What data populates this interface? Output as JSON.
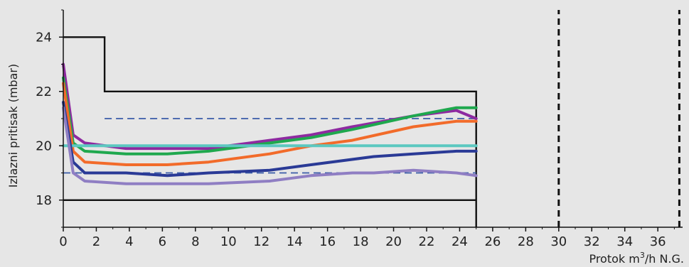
{
  "chart_data": {
    "type": "line",
    "title": "",
    "xlabel": "Protok m",
    "xlabel_sup": "3",
    "xlabel_suffix": "/h N.G.",
    "ylabel": "Izlazni pritisak (mbar)",
    "xlim": [
      0,
      37.5
    ],
    "ylim": [
      17,
      25
    ],
    "x_ticks": [
      0,
      2,
      4,
      6,
      8,
      10,
      12,
      14,
      16,
      18,
      20,
      22,
      24,
      26,
      28,
      30,
      32,
      34,
      36
    ],
    "y_ticks": [
      18,
      20,
      22,
      24
    ],
    "grid": false,
    "boundaries": [
      {
        "role": "limit",
        "style": "solid",
        "color": "#111111",
        "points": [
          [
            0,
            24
          ],
          [
            2.5,
            24
          ],
          [
            2.5,
            22
          ],
          [
            25,
            22
          ],
          [
            25,
            17
          ]
        ]
      },
      {
        "role": "limit",
        "style": "solid",
        "color": "#111111",
        "points": [
          [
            0,
            18
          ],
          [
            25,
            18
          ]
        ]
      },
      {
        "role": "marker",
        "style": "dashed",
        "color": "#111111",
        "points": [
          [
            30,
            17
          ],
          [
            30,
            25
          ]
        ]
      },
      {
        "role": "marker",
        "style": "dashed",
        "color": "#111111",
        "points": [
          [
            37.3,
            17
          ],
          [
            37.3,
            25
          ]
        ]
      },
      {
        "role": "reference",
        "style": "dashed",
        "color": "#3a5ba8",
        "points": [
          [
            2.5,
            21
          ],
          [
            25,
            21
          ]
        ]
      },
      {
        "role": "reference",
        "style": "dashed",
        "color": "#3a5ba8",
        "points": [
          [
            0,
            19
          ],
          [
            25,
            19
          ]
        ]
      }
    ],
    "series": [
      {
        "color": "#8e2aa0",
        "points": [
          [
            0,
            23
          ],
          [
            0.6,
            20.4
          ],
          [
            1.3,
            20.1
          ],
          [
            3.8,
            19.9
          ],
          [
            6.3,
            19.9
          ],
          [
            8.8,
            19.9
          ],
          [
            12.5,
            20.2
          ],
          [
            15,
            20.4
          ],
          [
            17.5,
            20.7
          ],
          [
            21.2,
            21.1
          ],
          [
            23.8,
            21.3
          ],
          [
            25,
            21
          ]
        ]
      },
      {
        "color": "#1fa84e",
        "points": [
          [
            0,
            22.5
          ],
          [
            0.6,
            20.1
          ],
          [
            1.3,
            19.8
          ],
          [
            3.8,
            19.7
          ],
          [
            6.3,
            19.7
          ],
          [
            8.8,
            19.8
          ],
          [
            12.5,
            20.1
          ],
          [
            15,
            20.3
          ],
          [
            17.5,
            20.6
          ],
          [
            21.2,
            21.1
          ],
          [
            23.8,
            21.4
          ],
          [
            25,
            21.4
          ]
        ]
      },
      {
        "color": "#f26b2a",
        "points": [
          [
            0,
            22.3
          ],
          [
            0.6,
            19.8
          ],
          [
            1.3,
            19.4
          ],
          [
            3.8,
            19.3
          ],
          [
            6.3,
            19.3
          ],
          [
            8.8,
            19.4
          ],
          [
            12.5,
            19.7
          ],
          [
            15,
            20
          ],
          [
            17.5,
            20.2
          ],
          [
            21.2,
            20.7
          ],
          [
            23.8,
            20.9
          ],
          [
            25,
            20.9
          ]
        ]
      },
      {
        "color": "#5cc8c0",
        "points": [
          [
            0,
            20
          ],
          [
            25,
            20
          ]
        ]
      },
      {
        "color": "#2a3a96",
        "points": [
          [
            0,
            21.6
          ],
          [
            0.6,
            19.4
          ],
          [
            1.3,
            19
          ],
          [
            3.8,
            19
          ],
          [
            6.3,
            18.9
          ],
          [
            8.8,
            19
          ],
          [
            12.5,
            19.1
          ],
          [
            15,
            19.3
          ],
          [
            18.8,
            19.6
          ],
          [
            21.2,
            19.7
          ],
          [
            23.8,
            19.8
          ],
          [
            25,
            19.8
          ]
        ]
      },
      {
        "color": "#8f7ec3",
        "points": [
          [
            0,
            21.4
          ],
          [
            0.6,
            19
          ],
          [
            1.3,
            18.7
          ],
          [
            3.8,
            18.6
          ],
          [
            6.3,
            18.6
          ],
          [
            8.8,
            18.6
          ],
          [
            12.5,
            18.7
          ],
          [
            15,
            18.9
          ],
          [
            17.5,
            19
          ],
          [
            18.8,
            19
          ],
          [
            21.2,
            19.1
          ],
          [
            23.8,
            19
          ],
          [
            25,
            18.9
          ]
        ]
      }
    ]
  }
}
